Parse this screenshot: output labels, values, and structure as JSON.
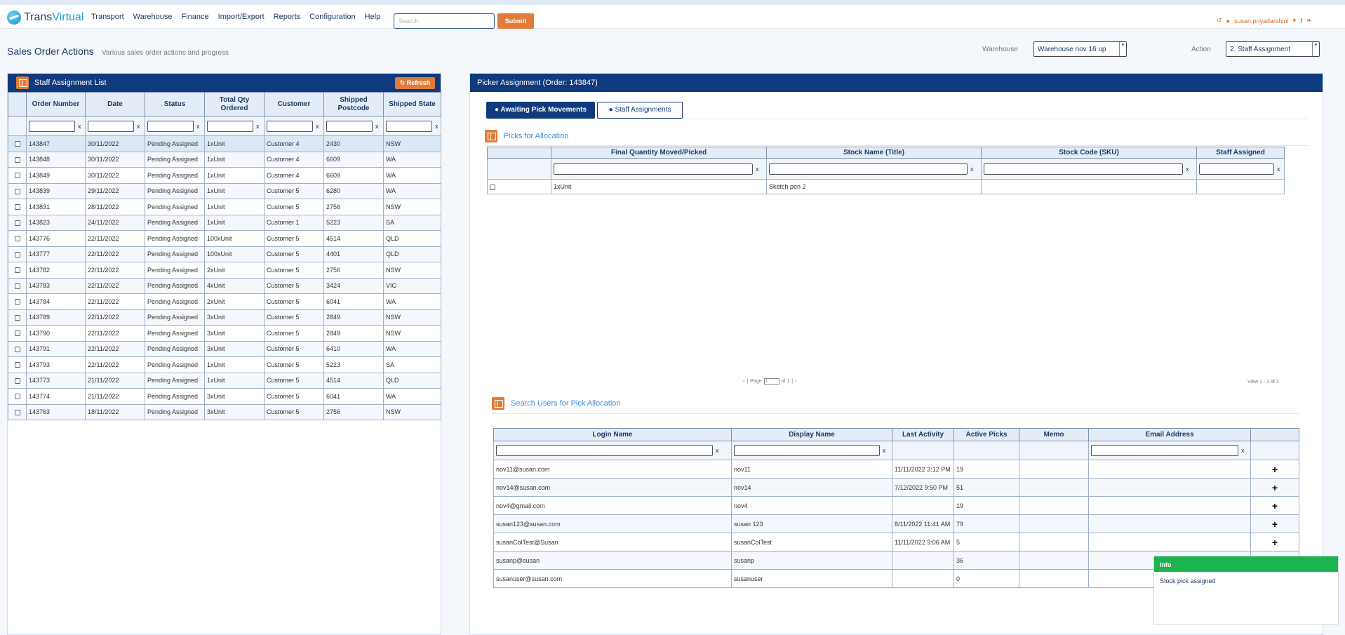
{
  "app": {
    "brand_a": "Trans",
    "brand_b": "Virtual",
    "nav": [
      "Transport",
      "Warehouse",
      "Finance",
      "Import/Export",
      "Reports",
      "Configuration",
      "Help"
    ],
    "search_placeholder": "Search",
    "submit_label": "Submit",
    "user_name": "susan.priyadarshini",
    "accent_color": "#e07b39",
    "primary_color": "#0f3a7d"
  },
  "page": {
    "title": "Sales Order Actions",
    "subtitle": "Various sales order actions and progress",
    "warehouse_label": "Warehouse",
    "warehouse_value": "Warehouse nov 16 up",
    "action_label": "Action",
    "action_value": "2. Staff Assignment"
  },
  "left_panel": {
    "title": "Staff Assignment List",
    "refresh_label": "Refresh",
    "columns": [
      "Order Number",
      "Date",
      "Status",
      "Total Qty Ordered",
      "Customer",
      "Shipped Postcode",
      "Shipped State"
    ],
    "filter_clear": "x",
    "rows": [
      [
        "143847",
        "30/11/2022",
        "Pending Assigned",
        "1xUnit",
        "Customer 4",
        "2430",
        "NSW"
      ],
      [
        "143848",
        "30/11/2022",
        "Pending Assigned",
        "1xUnit",
        "Customer 4",
        "6609",
        "WA"
      ],
      [
        "143849",
        "30/11/2022",
        "Pending Assigned",
        "1xUnit",
        "Customer 4",
        "6609",
        "WA"
      ],
      [
        "143839",
        "29/11/2022",
        "Pending Assigned",
        "1xUnit",
        "Customer 5",
        "6280",
        "WA"
      ],
      [
        "143831",
        "28/11/2022",
        "Pending Assigned",
        "1xUnit",
        "Customer 5",
        "2756",
        "NSW"
      ],
      [
        "143823",
        "24/11/2022",
        "Pending Assigned",
        "1xUnit",
        "Customer 1",
        "5223",
        "SA"
      ],
      [
        "143776",
        "22/11/2022",
        "Pending Assigned",
        "100xUnit",
        "Customer 5",
        "4514",
        "QLD"
      ],
      [
        "143777",
        "22/11/2022",
        "Pending Assigned",
        "100xUnit",
        "Customer 5",
        "4401",
        "QLD"
      ],
      [
        "143782",
        "22/11/2022",
        "Pending Assigned",
        "2xUnit",
        "Customer 5",
        "2756",
        "NSW"
      ],
      [
        "143783",
        "22/11/2022",
        "Pending Assigned",
        "4xUnit",
        "Customer 5",
        "3424",
        "VIC"
      ],
      [
        "143784",
        "22/11/2022",
        "Pending Assigned",
        "2xUnit",
        "Customer 5",
        "6041",
        "WA"
      ],
      [
        "143789",
        "22/11/2022",
        "Pending Assigned",
        "3xUnit",
        "Customer 5",
        "2849",
        "NSW"
      ],
      [
        "143790",
        "22/11/2022",
        "Pending Assigned",
        "3xUnit",
        "Customer 5",
        "2849",
        "NSW"
      ],
      [
        "143791",
        "22/11/2022",
        "Pending Assigned",
        "3xUnit",
        "Customer 5",
        "6410",
        "WA"
      ],
      [
        "143793",
        "22/11/2022",
        "Pending Assigned",
        "1xUnit",
        "Customer 5",
        "5223",
        "SA"
      ],
      [
        "143773",
        "21/11/2022",
        "Pending Assigned",
        "1xUnit",
        "Customer 5",
        "4514",
        "QLD"
      ],
      [
        "143774",
        "21/11/2022",
        "Pending Assigned",
        "3xUnit",
        "Customer 5",
        "6041",
        "WA"
      ],
      [
        "143763",
        "18/11/2022",
        "Pending Assigned",
        "3xUnit",
        "Customer 5",
        "2756",
        "NSW"
      ]
    ]
  },
  "right_panel": {
    "title": "Picker Assignment (Order: 143847)",
    "tabs": [
      "Awaiting Pick Movements",
      "Staff Assignments"
    ],
    "picks_title": "Picks for Allocation",
    "picks_columns": [
      "Final Quantity Moved/Picked",
      "Stock Name (Title)",
      "Stock Code (SKU)",
      "Staff Assigned"
    ],
    "picks_rows": [
      [
        "1xUnit",
        "Sketch pen 2",
        "",
        ""
      ]
    ],
    "pager_page": "Page",
    "pager_value": "1",
    "pager_of": "of 1",
    "view_count": "View 1 - 1 of 1",
    "users_title": "Search Users for Pick Allocation",
    "users_columns": [
      "Login Name",
      "Display Name",
      "Last Activity",
      "Active Picks",
      "Memo",
      "Email Address"
    ],
    "users_rows": [
      [
        "nov11@susan.com",
        "nov11",
        "11/11/2022 3:12 PM",
        "19",
        "",
        ""
      ],
      [
        "nov14@susan.com",
        "nov14",
        "7/12/2022 9:50 PM",
        "51",
        "",
        ""
      ],
      [
        "nov4@gmail.com",
        "nov4",
        "",
        "19",
        "",
        ""
      ],
      [
        "susan123@susan.com",
        "susan 123",
        "8/11/2022 11:41 AM",
        "79",
        "",
        ""
      ],
      [
        "susanColTest@Susan",
        "susanColTest",
        "11/11/2022 9:06 AM",
        "5",
        "",
        ""
      ],
      [
        "susanp@susan",
        "susanp",
        "",
        "36",
        "",
        ""
      ],
      [
        "susanuser@susan.com",
        "susanuser",
        "",
        "0",
        "",
        ""
      ]
    ]
  },
  "toast": {
    "title": "Info",
    "message": "Stock pick assigned",
    "color": "#1bb44e"
  }
}
